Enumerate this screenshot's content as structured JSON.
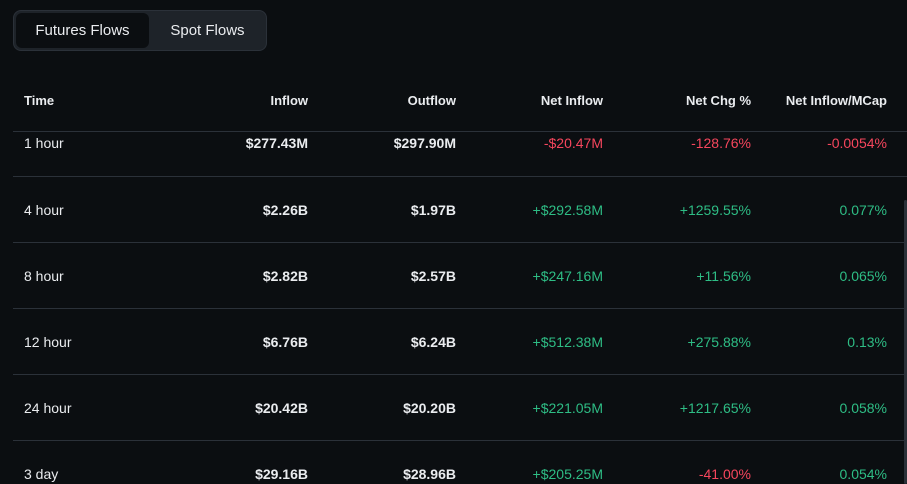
{
  "tabs": {
    "futures_label": "Futures Flows",
    "spot_label": "Spot Flows"
  },
  "table": {
    "headers": {
      "time": "Time",
      "inflow": "Inflow",
      "outflow": "Outflow",
      "net_inflow": "Net Inflow",
      "net_chg": "Net Chg %",
      "net_mcap": "Net Inflow/MCap"
    },
    "rows": [
      {
        "time": "1 hour",
        "inflow": "$277.43M",
        "outflow": "$297.90M",
        "net_inflow": "-$20.47M",
        "net_chg": "-128.76%",
        "net_mcap": "-0.0054%"
      },
      {
        "time": "4 hour",
        "inflow": "$2.26B",
        "outflow": "$1.97B",
        "net_inflow": "+$292.58M",
        "net_chg": "+1259.55%",
        "net_mcap": "0.077%"
      },
      {
        "time": "8 hour",
        "inflow": "$2.82B",
        "outflow": "$2.57B",
        "net_inflow": "+$247.16M",
        "net_chg": "+11.56%",
        "net_mcap": "0.065%"
      },
      {
        "time": "12 hour",
        "inflow": "$6.76B",
        "outflow": "$6.24B",
        "net_inflow": "+$512.38M",
        "net_chg": "+275.88%",
        "net_mcap": "0.13%"
      },
      {
        "time": "24 hour",
        "inflow": "$20.42B",
        "outflow": "$20.20B",
        "net_inflow": "+$221.05M",
        "net_chg": "+1217.65%",
        "net_mcap": "0.058%"
      },
      {
        "time": "3 day",
        "inflow": "$29.16B",
        "outflow": "$28.96B",
        "net_inflow": "+$205.25M",
        "net_chg": "-41.00%",
        "net_mcap": "0.054%"
      }
    ]
  },
  "colors": {
    "positive": "#2ebd85",
    "negative": "#f6465d",
    "background": "#0b0e11"
  }
}
